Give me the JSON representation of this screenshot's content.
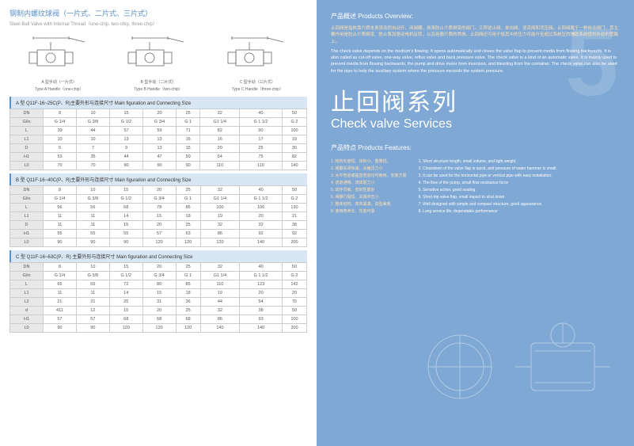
{
  "left": {
    "title_cn": "钢制内螺纹球阀（一片式、二片式、三片式）",
    "title_en": "Steel Ball Valve with Internal Thread（one-chip, two-chip, three-chip）",
    "diagrams": [
      {
        "label_cn": "A 型手动（一片式）",
        "label_en": "Type A Handle（one-chip）"
      },
      {
        "label_cn": "B 型手动（二片式）",
        "label_en": "Type B Handle（two-chip）"
      },
      {
        "label_cn": "C 型手动（三片式）",
        "label_en": "Type C Handle（three-chip）"
      }
    ],
    "tables": [
      {
        "header": "A 型 Q11F-16~25C(P、R)主要外形与连接尺寸 Main figuration and Connecting Size",
        "rows": [
          {
            "k": "DN",
            "v": [
              "8",
              "10",
              "15",
              "20",
              "25",
              "32",
              "40",
              "50"
            ]
          },
          {
            "k": "G/in",
            "v": [
              "G 1/4",
              "G 3/8",
              "G 1/2",
              "G 3/4",
              "G 1",
              "G1 1/4",
              "G 1 1/2",
              "G 2"
            ]
          },
          {
            "k": "L",
            "v": [
              "39",
              "44",
              "57",
              "59",
              "71",
              "82",
              "90",
              "100"
            ]
          },
          {
            "k": "L1",
            "v": [
              "10",
              "10",
              "13",
              "13",
              "15",
              "16",
              "17",
              "19"
            ]
          },
          {
            "k": "D",
            "v": [
              "5",
              "7",
              "9",
              "13",
              "15",
              "20",
              "25",
              "30"
            ]
          },
          {
            "k": "H1",
            "v": [
              "53",
              "35",
              "44",
              "47",
              "50",
              "64",
              "75",
              "82"
            ]
          },
          {
            "k": "L0",
            "v": [
              "70",
              "70",
              "90",
              "90",
              "90",
              "110",
              "110",
              "140"
            ]
          }
        ]
      },
      {
        "header": "B 型 Q11F-16~40C(P、R)主要外形与连接尺寸 Main figuration and Connecting Size",
        "rows": [
          {
            "k": "DN",
            "v": [
              "8",
              "10",
              "15",
              "20",
              "25",
              "32",
              "40",
              "50"
            ]
          },
          {
            "k": "G/in",
            "v": [
              "G 1/4",
              "G 3/8",
              "G 1/2",
              "G 3/4",
              "G 1",
              "G1 1/4",
              "G 1 1/2",
              "G 2"
            ]
          },
          {
            "k": "L",
            "v": [
              "56",
              "56",
              "68",
              "78",
              "86",
              "100",
              "106",
              "130"
            ]
          },
          {
            "k": "L1",
            "v": [
              "11",
              "11",
              "14",
              "15",
              "18",
              "19",
              "20",
              "21"
            ]
          },
          {
            "k": "D",
            "v": [
              "11",
              "11",
              "15",
              "20",
              "25",
              "32",
              "32",
              "38"
            ]
          },
          {
            "k": "H1",
            "v": [
              "55",
              "55",
              "55",
              "57",
              "63",
              "86",
              "92",
              "92"
            ]
          },
          {
            "k": "L0",
            "v": [
              "90",
              "90",
              "90",
              "120",
              "120",
              "120",
              "140",
              "200"
            ]
          }
        ]
      },
      {
        "header": "C 型 Q11F-16~63C(P、R) 主要外形与连接尺寸 Main figuration and Connecting Size",
        "rows": [
          {
            "k": "DN",
            "v": [
              "8",
              "10",
              "15",
              "20",
              "25",
              "32",
              "40",
              "50"
            ]
          },
          {
            "k": "G/in",
            "v": [
              "G 1/4",
              "G 3/8",
              "G 1/2",
              "G 3/4",
              "G 1",
              "G1 1/4",
              "G 1 1/2",
              "G 2"
            ]
          },
          {
            "k": "L",
            "v": [
              "65",
              "65",
              "72",
              "80",
              "85",
              "110",
              "123",
              "142"
            ]
          },
          {
            "k": "L1",
            "v": [
              "11",
              "11",
              "14",
              "15",
              "18",
              "19",
              "20",
              "20"
            ]
          },
          {
            "k": "L2",
            "v": [
              "21",
              "21",
              "25",
              "31",
              "36",
              "44",
              "54",
              "70"
            ]
          },
          {
            "k": "d",
            "v": [
              "411",
              "12",
              "15",
              "20",
              "25",
              "32",
              "38",
              "50"
            ]
          },
          {
            "k": "H1",
            "v": [
              "57",
              "57",
              "68",
              "68",
              "68",
              "86",
              "93",
              "100"
            ]
          },
          {
            "k": "L0",
            "v": [
              "90",
              "90",
              "120",
              "120",
              "120",
              "140",
              "140",
              "200"
            ]
          }
        ]
      }
    ]
  },
  "right": {
    "bignum": "5",
    "overview_title": "产品概述 Products Overview:",
    "overview_cn": "止回阀是指依靠介质本身流动而自动开、闭阀瓣，用来防止介质倒流的阀门。又称逆止阀、单向阀、逆流阀和背压阀。止回阀属于一种自动阀门，其主要作用是防止介质倒流、防止泵及驱动电机反转，以及容器介质的泄放。止回阀还可用于给其中的压力可能升至超过系统压的辅助系统提供补给的管路上。",
    "overview_en": "The check valve depends on the medium's flowing. It opens automatically and closes the valve flap to prevent media from flowing backwards. It is also called as cut-off valve, one-way valve, reflux valve and back pressure valve. The check valve is a kind of an automatic valve. It is mainly used to prevent media from flowing backwards, the pump and drive motor from inversion, and bleeding from the container. The check valve can also be used for the pipe to help the auxiliary system where the pressure exceeds the system pressure.",
    "main_cn": "止回阀系列",
    "main_en": "Check valve Services",
    "feat_title": "产品特点 Products Features:",
    "feat_cn": [
      "1. 结构长度短、体积小、重量轻。",
      "2. 阀瓣关闭快速、水锤压力小",
      "3. 水平管道或垂直管道均可使用。安装方便",
      "4. 流道通畅、流体阻力小",
      "5. 动作灵敏、密封性能好",
      "6. 阀瓣行程短、关阀冲击小",
      "7. 整体结构、简单紧凑、造型美观",
      "8. 使用寿命长、性能可靠"
    ],
    "feat_en": [
      "1. Short structure length, small volume, and light weight.",
      "2. Closedown of the valve flap is quick, and pressure of water hammer is small.",
      "3. It can be used for the horizontal pipe or vertical pipe with easy installation.",
      "4. The flow of the pump, small flow resistance force",
      "5. Sensitive action, good sealing",
      "6. Short trip valve flap, small impact to shut down",
      "7. Well designed with simple and compact structure, good appearance",
      "8. Long service life, dependable performance"
    ]
  }
}
